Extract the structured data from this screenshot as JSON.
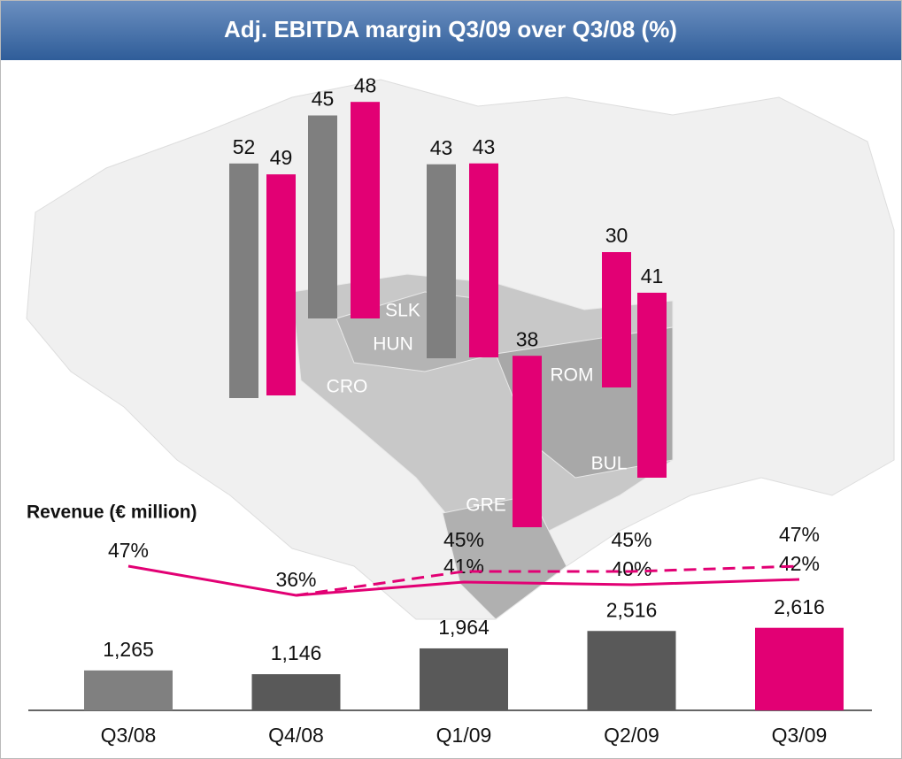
{
  "chart_data": {
    "type": "bar",
    "title": "Adj. EBITDA margin Q3/09 over Q3/08 (%)",
    "margins": [
      {
        "country": "CRO",
        "values": [
          52,
          49
        ],
        "colors": [
          "#7f7f7f",
          "#e20074"
        ]
      },
      {
        "country": "SLK",
        "values": [
          45,
          48
        ],
        "colors": [
          "#7f7f7f",
          "#e20074"
        ]
      },
      {
        "country": "HUN",
        "values": [
          43,
          43
        ],
        "colors": [
          "#7f7f7f",
          "#e20074"
        ]
      },
      {
        "country": "GRE",
        "values": [
          38
        ],
        "colors": [
          "#e20074"
        ]
      },
      {
        "country": "ROM",
        "values": [
          30
        ],
        "colors": [
          "#e20074"
        ]
      },
      {
        "country": "BUL",
        "values": [
          41
        ],
        "colors": [
          "#e20074"
        ]
      }
    ],
    "revenue_label": "Revenue (€ million)",
    "categories": [
      "Q3/08",
      "Q4/08",
      "Q1/09",
      "Q2/09",
      "Q3/09"
    ],
    "values": [
      1265,
      1146,
      1964,
      2516,
      2616
    ],
    "value_labels": [
      "1,265",
      "1,146",
      "1,964",
      "2,516",
      "2,616"
    ],
    "colors": [
      "#808080",
      "#595959",
      "#595959",
      "#595959",
      "#e20074"
    ],
    "ylim": [
      0,
      3000
    ],
    "lines": [
      {
        "values": [
          47,
          36,
          41,
          40,
          42
        ],
        "value_labels": [
          "47%",
          "36%",
          "41%",
          "40%",
          "42%"
        ],
        "color": "#e20074",
        "dashed": false
      },
      {
        "values": [
          null,
          36,
          45,
          45,
          47
        ],
        "value_labels": [
          null,
          null,
          "45%",
          "45%",
          "47%"
        ],
        "color": "#e20074",
        "dashed": true
      }
    ],
    "y2lim": [
      0,
      100
    ]
  }
}
